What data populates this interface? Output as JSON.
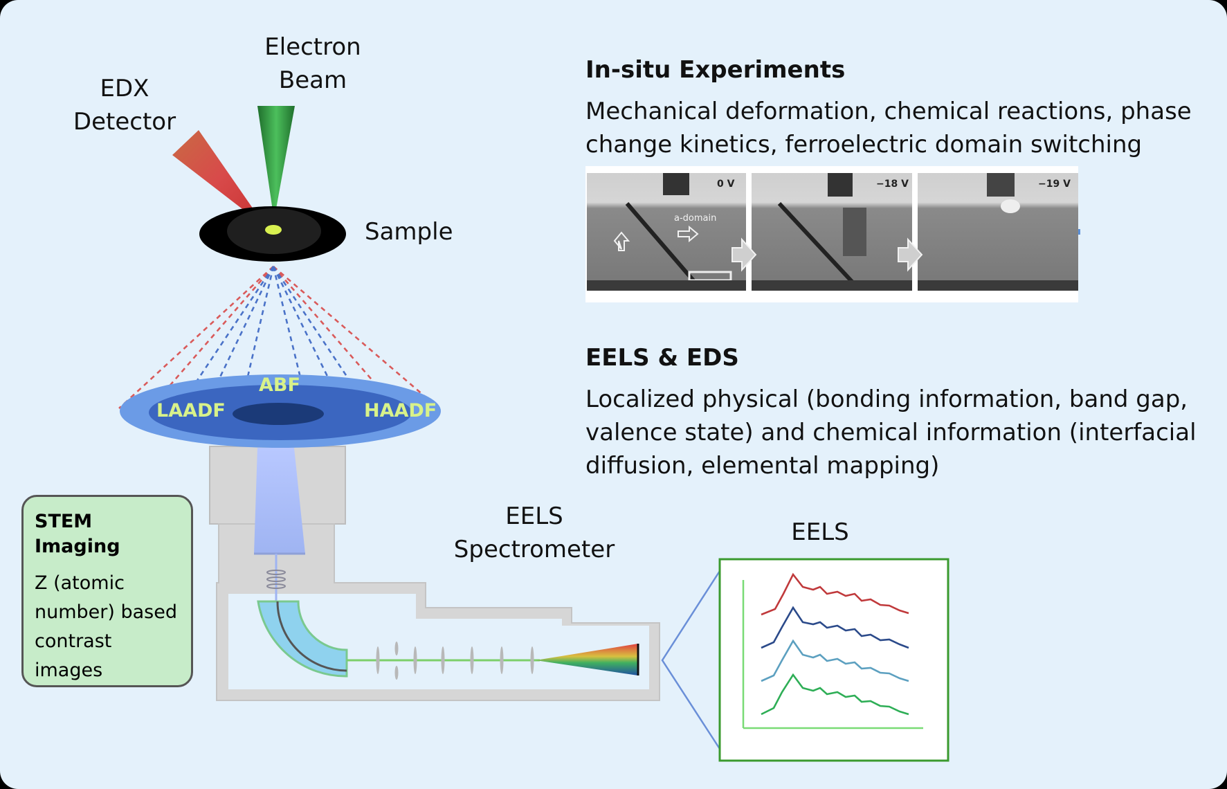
{
  "labels": {
    "edx_detector": "EDX\nDetector",
    "electron_beam": "Electron\nBeam",
    "sample": "Sample",
    "abf": "ABF",
    "laadf": "LAADF",
    "haadf": "HAADF",
    "eels_spectrometer": "EELS\nSpectrometer",
    "eels": "EELS"
  },
  "stem": {
    "title": "STEM Imaging",
    "desc": "Z (atomic number) based contrast images"
  },
  "insitu": {
    "title": "In-situ Experiments",
    "desc": "Mechanical deformation, chemical reactions, phase change kinetics, ferroelectric domain switching",
    "panels": [
      {
        "voltage": "0 V",
        "annotation": "a-domain"
      },
      {
        "voltage": "−18 V"
      },
      {
        "voltage": "−19 V"
      }
    ]
  },
  "eels_eds": {
    "title": "EELS & EDS",
    "desc": "Localized physical (bonding information, band gap, valence state) and chemical information (interfacial diffusion, elemental mapping)"
  },
  "colors": {
    "background": "#e4f1fb",
    "edx_cone": "#c94444",
    "beam_cone": "#2e8b3a",
    "detector_outer": "#6b9be6",
    "detector_inner": "#23478f",
    "detector_label": "#d8f28a",
    "spectrum_red": "#c0393b",
    "spectrum_navy": "#2b4a8a",
    "spectrum_lightblue": "#5ca0c0",
    "spectrum_green": "#2eae56",
    "plot_frame": "#3a9a2e"
  }
}
